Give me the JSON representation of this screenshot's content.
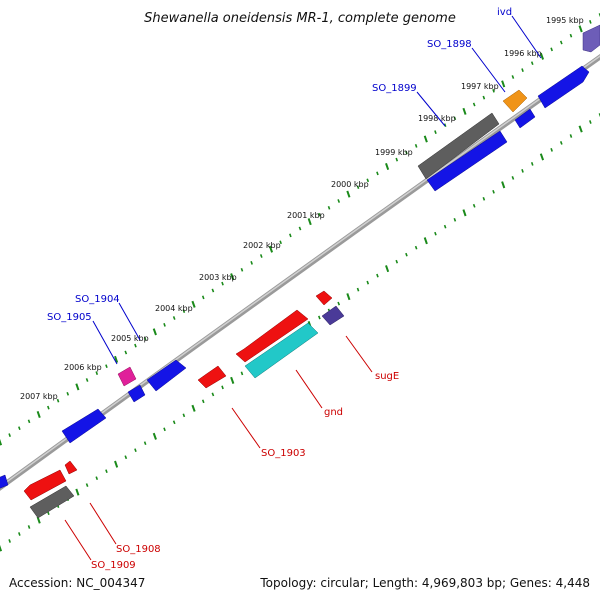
{
  "title": "Shewanella oneidensis MR-1, complete genome",
  "footer": {
    "accession": "Accession: NC_004347",
    "summary": "Topology: circular; Length: 4,969,803 bp; Genes: 4,448"
  },
  "colors": {
    "backbone": "#8a8a8a",
    "dots": "#1a8a1a",
    "label_top": "#0000cc",
    "label_bottom": "#cc0000",
    "blue": "#1010e0",
    "red": "#ee1111",
    "gray": "#606060",
    "cyan": "#20c8c8",
    "orange": "#f09010",
    "magenta": "#e0209a",
    "slate": "#5a4aa8",
    "violet": "#7060c0"
  },
  "ticks": [
    "1995 kbp",
    "1996 kbp",
    "1997 kbp",
    "1998 kbp",
    "1999 kbp",
    "2000 kbp",
    "2001 kbp",
    "2002 kbp",
    "2003 kbp",
    "2004 kbp",
    "2005 kbp",
    "2006 kbp",
    "2007 kbp"
  ],
  "gene_labels": {
    "ivd": "ivd",
    "so_1898": "SO_1898",
    "so_1899": "SO_1899",
    "so_1904": "SO_1904",
    "so_1905": "SO_1905",
    "suge": "sugE",
    "gnd": "gnd",
    "so_1903": "SO_1903",
    "so_1908": "SO_1908",
    "so_1909": "SO_1909"
  }
}
